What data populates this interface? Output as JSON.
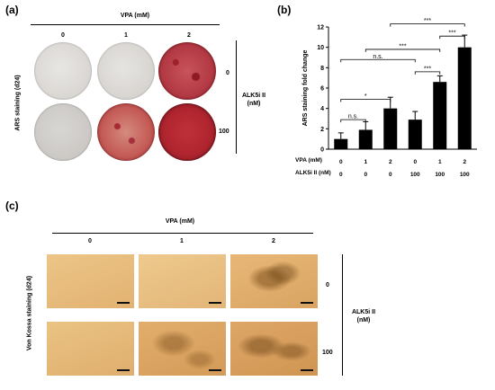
{
  "panel_a": {
    "label": "(a)",
    "vpa_header": "VPA (mM)",
    "vpa_levels": [
      "0",
      "1",
      "2"
    ],
    "side_label": "ARS staining (d24)",
    "alk_label_line1": "ALK5i II",
    "alk_label_line2": "(nM)",
    "alk_levels": [
      "0",
      "100"
    ]
  },
  "panel_b": {
    "label": "(b)",
    "row_labels": [
      "VPA (mM)",
      "ALK5i II (nM)"
    ],
    "vpa_row": [
      "0",
      "1",
      "2",
      "0",
      "1",
      "2"
    ],
    "alk_row": [
      "0",
      "0",
      "0",
      "100",
      "100",
      "100"
    ],
    "brackets": [
      {
        "from": 0,
        "to": 1,
        "text": "n.s."
      },
      {
        "from": 0,
        "to": 2,
        "text": "*"
      },
      {
        "from": 0,
        "to": 3,
        "text": "n.s."
      },
      {
        "from": 3,
        "to": 4,
        "text": "***"
      },
      {
        "from": 1,
        "to": 4,
        "text": "***"
      },
      {
        "from": 4,
        "to": 5,
        "text": "***"
      },
      {
        "from": 2,
        "to": 5,
        "text": "***"
      }
    ]
  },
  "panel_c": {
    "label": "(c)",
    "vpa_header": "VPA (mM)",
    "vpa_levels": [
      "0",
      "1",
      "2"
    ],
    "side_label": "Von Kossa staining (d24)",
    "alk_label_line1": "ALK5i II",
    "alk_label_line2": "(nM)",
    "alk_levels": [
      "0",
      "100"
    ]
  },
  "chart_data": {
    "type": "bar",
    "categories": [
      "0 / 0",
      "1 / 0",
      "2 / 0",
      "0 / 100",
      "1 / 100",
      "2 / 100"
    ],
    "values": [
      1.0,
      1.9,
      4.0,
      2.9,
      6.6,
      10.0
    ],
    "errors": [
      0.6,
      0.8,
      1.1,
      0.8,
      0.6,
      1.2
    ],
    "title": "",
    "xlabel": "",
    "ylabel": "ARS staining fold change",
    "ylim": [
      0,
      12
    ],
    "yticks": [
      0,
      2,
      4,
      6,
      8,
      10,
      12
    ],
    "bar_color": "#000000",
    "grid": false
  },
  "colors": {
    "ars_light": "#dddbd8",
    "ars_red": "#b8303a",
    "vk_bg": "#e8b978",
    "vk_dark": "#8a5a26"
  }
}
